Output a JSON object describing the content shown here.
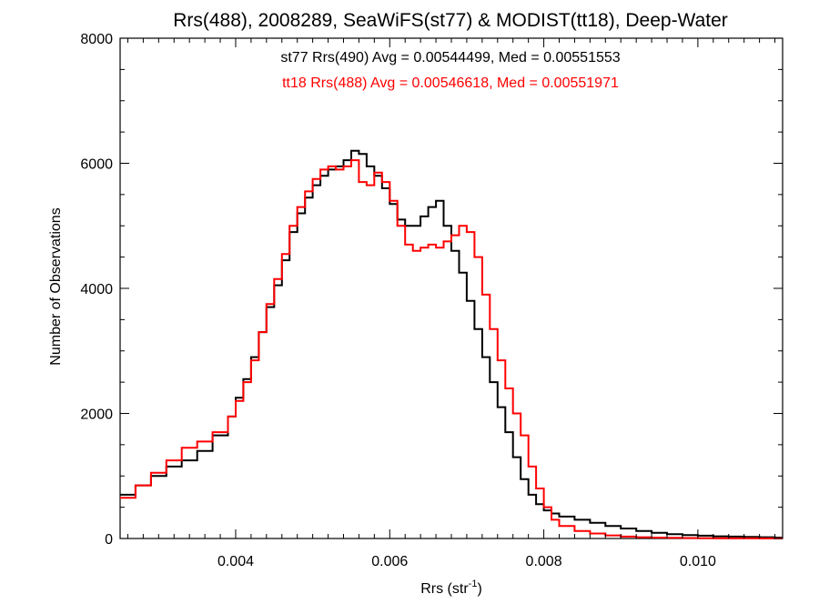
{
  "chart_data": {
    "type": "line",
    "title": "Rrs(488), 2008289, SeaWiFS(st77) & MODIST(tt18), Deep-Water",
    "xlabel": "Rrs (str",
    "xlabel_sup": "-1",
    "xlabel_close": ")",
    "ylabel": "Number of Observations",
    "xlim": [
      0.0025,
      0.0111
    ],
    "ylim": [
      0,
      8000
    ],
    "x_ticks": [
      0.004,
      0.006,
      0.008,
      0.01
    ],
    "x_tick_labels": [
      "0.004",
      "0.006",
      "0.008",
      "0.010"
    ],
    "y_ticks": [
      0,
      2000,
      4000,
      6000,
      8000
    ],
    "y_tick_labels": [
      "0",
      "2000",
      "4000",
      "6000",
      "8000"
    ],
    "grid": false,
    "annotations": [
      {
        "text": "st77 Rrs(490) Avg = 0.00544499, Med = 0.00551553",
        "color": "#000000"
      },
      {
        "text": "tt18 Rrs(488) Avg = 0.00546618, Med = 0.00551971",
        "color": "#ff0000"
      }
    ],
    "series": [
      {
        "color": "#000000",
        "x": [
          0.0025,
          0.0027,
          0.0029,
          0.0031,
          0.0033,
          0.0035,
          0.0037,
          0.0039,
          0.004,
          0.0041,
          0.0042,
          0.0043,
          0.0044,
          0.0045,
          0.0046,
          0.0047,
          0.0048,
          0.0049,
          0.005,
          0.0051,
          0.0052,
          0.0053,
          0.0054,
          0.0055,
          0.0056,
          0.0057,
          0.0058,
          0.0059,
          0.006,
          0.0061,
          0.0062,
          0.0063,
          0.0064,
          0.0065,
          0.0066,
          0.0067,
          0.0068,
          0.0069,
          0.007,
          0.0071,
          0.0072,
          0.0073,
          0.0074,
          0.0075,
          0.0076,
          0.0077,
          0.0078,
          0.0079,
          0.008,
          0.0081,
          0.0082,
          0.0084,
          0.0086,
          0.0088,
          0.009,
          0.0092,
          0.0094,
          0.0096,
          0.0098,
          0.01,
          0.0102,
          0.0104,
          0.0106,
          0.0108,
          0.011
        ],
        "y": [
          700,
          850,
          1000,
          1150,
          1250,
          1400,
          1650,
          1950,
          2250,
          2550,
          2900,
          3300,
          3700,
          4050,
          4450,
          4900,
          5200,
          5450,
          5650,
          5800,
          5900,
          5950,
          6050,
          6200,
          6150,
          5950,
          5800,
          5600,
          5350,
          5100,
          5000,
          5000,
          5150,
          5300,
          5400,
          5000,
          4600,
          4250,
          3800,
          3350,
          2900,
          2500,
          2100,
          1700,
          1300,
          950,
          700,
          550,
          450,
          400,
          350,
          300,
          250,
          200,
          160,
          120,
          90,
          70,
          55,
          45,
          35,
          30,
          25,
          20,
          15
        ]
      },
      {
        "color": "#ff0000",
        "x": [
          0.0025,
          0.0027,
          0.0029,
          0.0031,
          0.0033,
          0.0035,
          0.0037,
          0.0039,
          0.004,
          0.0041,
          0.0042,
          0.0043,
          0.0044,
          0.0045,
          0.0046,
          0.0047,
          0.0048,
          0.0049,
          0.005,
          0.0051,
          0.0052,
          0.0053,
          0.0054,
          0.0055,
          0.0056,
          0.0057,
          0.0058,
          0.0059,
          0.006,
          0.0061,
          0.0062,
          0.0063,
          0.0064,
          0.0065,
          0.0066,
          0.0067,
          0.0068,
          0.0069,
          0.007,
          0.0071,
          0.0072,
          0.0073,
          0.0074,
          0.0075,
          0.0076,
          0.0077,
          0.0078,
          0.0079,
          0.008,
          0.0081,
          0.0082,
          0.0084,
          0.0086,
          0.0088,
          0.009,
          0.0092,
          0.0094,
          0.0096,
          0.0098,
          0.01,
          0.0102,
          0.0104,
          0.0106,
          0.0108,
          0.011
        ],
        "y": [
          650,
          850,
          1050,
          1250,
          1450,
          1550,
          1700,
          1950,
          2200,
          2500,
          2850,
          3300,
          3750,
          4150,
          4550,
          5000,
          5300,
          5550,
          5750,
          5900,
          5950,
          5900,
          5950,
          6050,
          5700,
          5650,
          5850,
          5700,
          5400,
          5000,
          4700,
          4600,
          4650,
          4700,
          4650,
          4750,
          4850,
          5000,
          4900,
          4500,
          3900,
          3350,
          2850,
          2400,
          2000,
          1650,
          1150,
          800,
          500,
          300,
          200,
          120,
          80,
          50,
          30,
          20,
          15,
          10,
          8,
          6,
          5,
          4,
          3,
          2,
          1
        ]
      }
    ]
  }
}
